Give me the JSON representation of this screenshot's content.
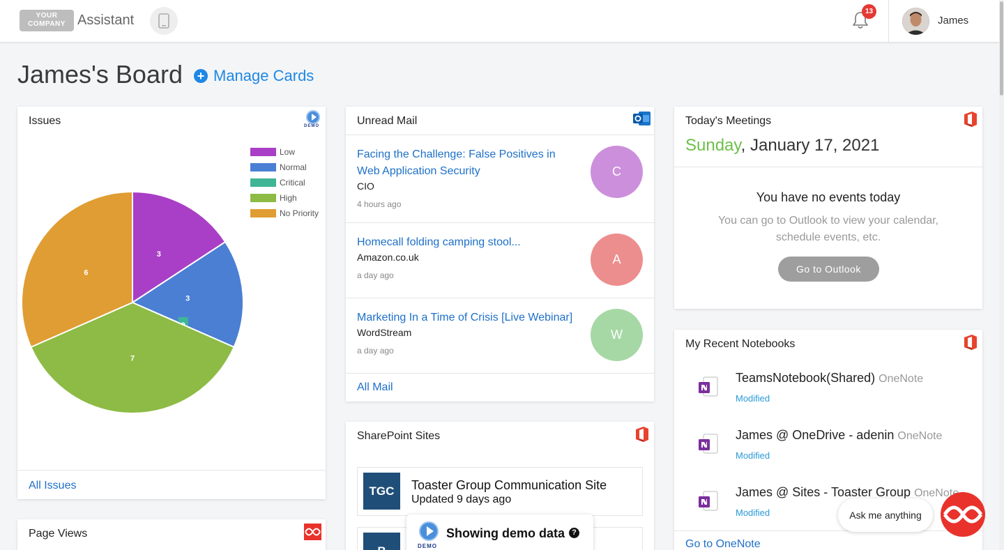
{
  "header": {
    "logo_line1": "YOUR",
    "logo_line2": "COMPANY",
    "app_name": "Assistant",
    "notifications_count": "13",
    "user_name": "James"
  },
  "board": {
    "title": "James's Board",
    "manage_label": "Manage Cards"
  },
  "issues": {
    "title": "Issues",
    "demo_badge": "DEMO",
    "footer_link": "All Issues",
    "chart_data": {
      "type": "pie",
      "categories": [
        "Low",
        "Normal",
        "Critical",
        "High",
        "No Priority"
      ],
      "values": [
        3,
        3,
        0,
        7,
        6
      ],
      "colors": [
        "#a93fc6",
        "#4a7fd4",
        "#3fb596",
        "#8dbb45",
        "#e09d33"
      ],
      "legend_position": "top-right"
    }
  },
  "page_views": {
    "title": "Page Views"
  },
  "mail": {
    "title": "Unread Mail",
    "items": [
      {
        "subject": "Facing the Challenge: False Positives in Web Application Security",
        "from": "CIO",
        "time": "4 hours ago",
        "initial": "C",
        "color": "#cc8fdb"
      },
      {
        "subject": "Homecall folding camping stool...",
        "from": "Amazon.co.uk",
        "time": "a day ago",
        "initial": "A",
        "color": "#ed8e8e"
      },
      {
        "subject": "Marketing In a Time of Crisis [Live Webinar]",
        "from": "WordStream",
        "time": "a day ago",
        "initial": "W",
        "color": "#a6d8a6"
      }
    ],
    "footer_link": "All Mail"
  },
  "sharepoint": {
    "title": "SharePoint Sites",
    "sites": [
      {
        "abbr": "TGC",
        "name": "Toaster Group Communication Site",
        "updated": "Updated 9 days ago"
      },
      {
        "abbr": "B"
      }
    ]
  },
  "demo_popup": {
    "text": "Showing demo data",
    "badge": "DEMO",
    "help": "?"
  },
  "meetings": {
    "title": "Today's Meetings",
    "day": "Sunday",
    "date": "January 17, 2021",
    "empty_title": "You have no events today",
    "empty_sub": "You can go to Outlook to view your calendar, schedule events, etc.",
    "button": "Go to Outlook"
  },
  "notebooks": {
    "title": "My Recent Notebooks",
    "items": [
      {
        "name": "TeamsNotebook(Shared)",
        "app": "OneNote",
        "status": "Modified"
      },
      {
        "name": "James @ OneDrive - adenin",
        "app": "OneNote",
        "status": "Modified"
      },
      {
        "name": "James @ Sites - Toaster Group",
        "app": "OneNote",
        "status": "Modified"
      }
    ],
    "footer_link": "Go to OneNote"
  },
  "assistant": {
    "ask_label": "Ask me anything"
  }
}
